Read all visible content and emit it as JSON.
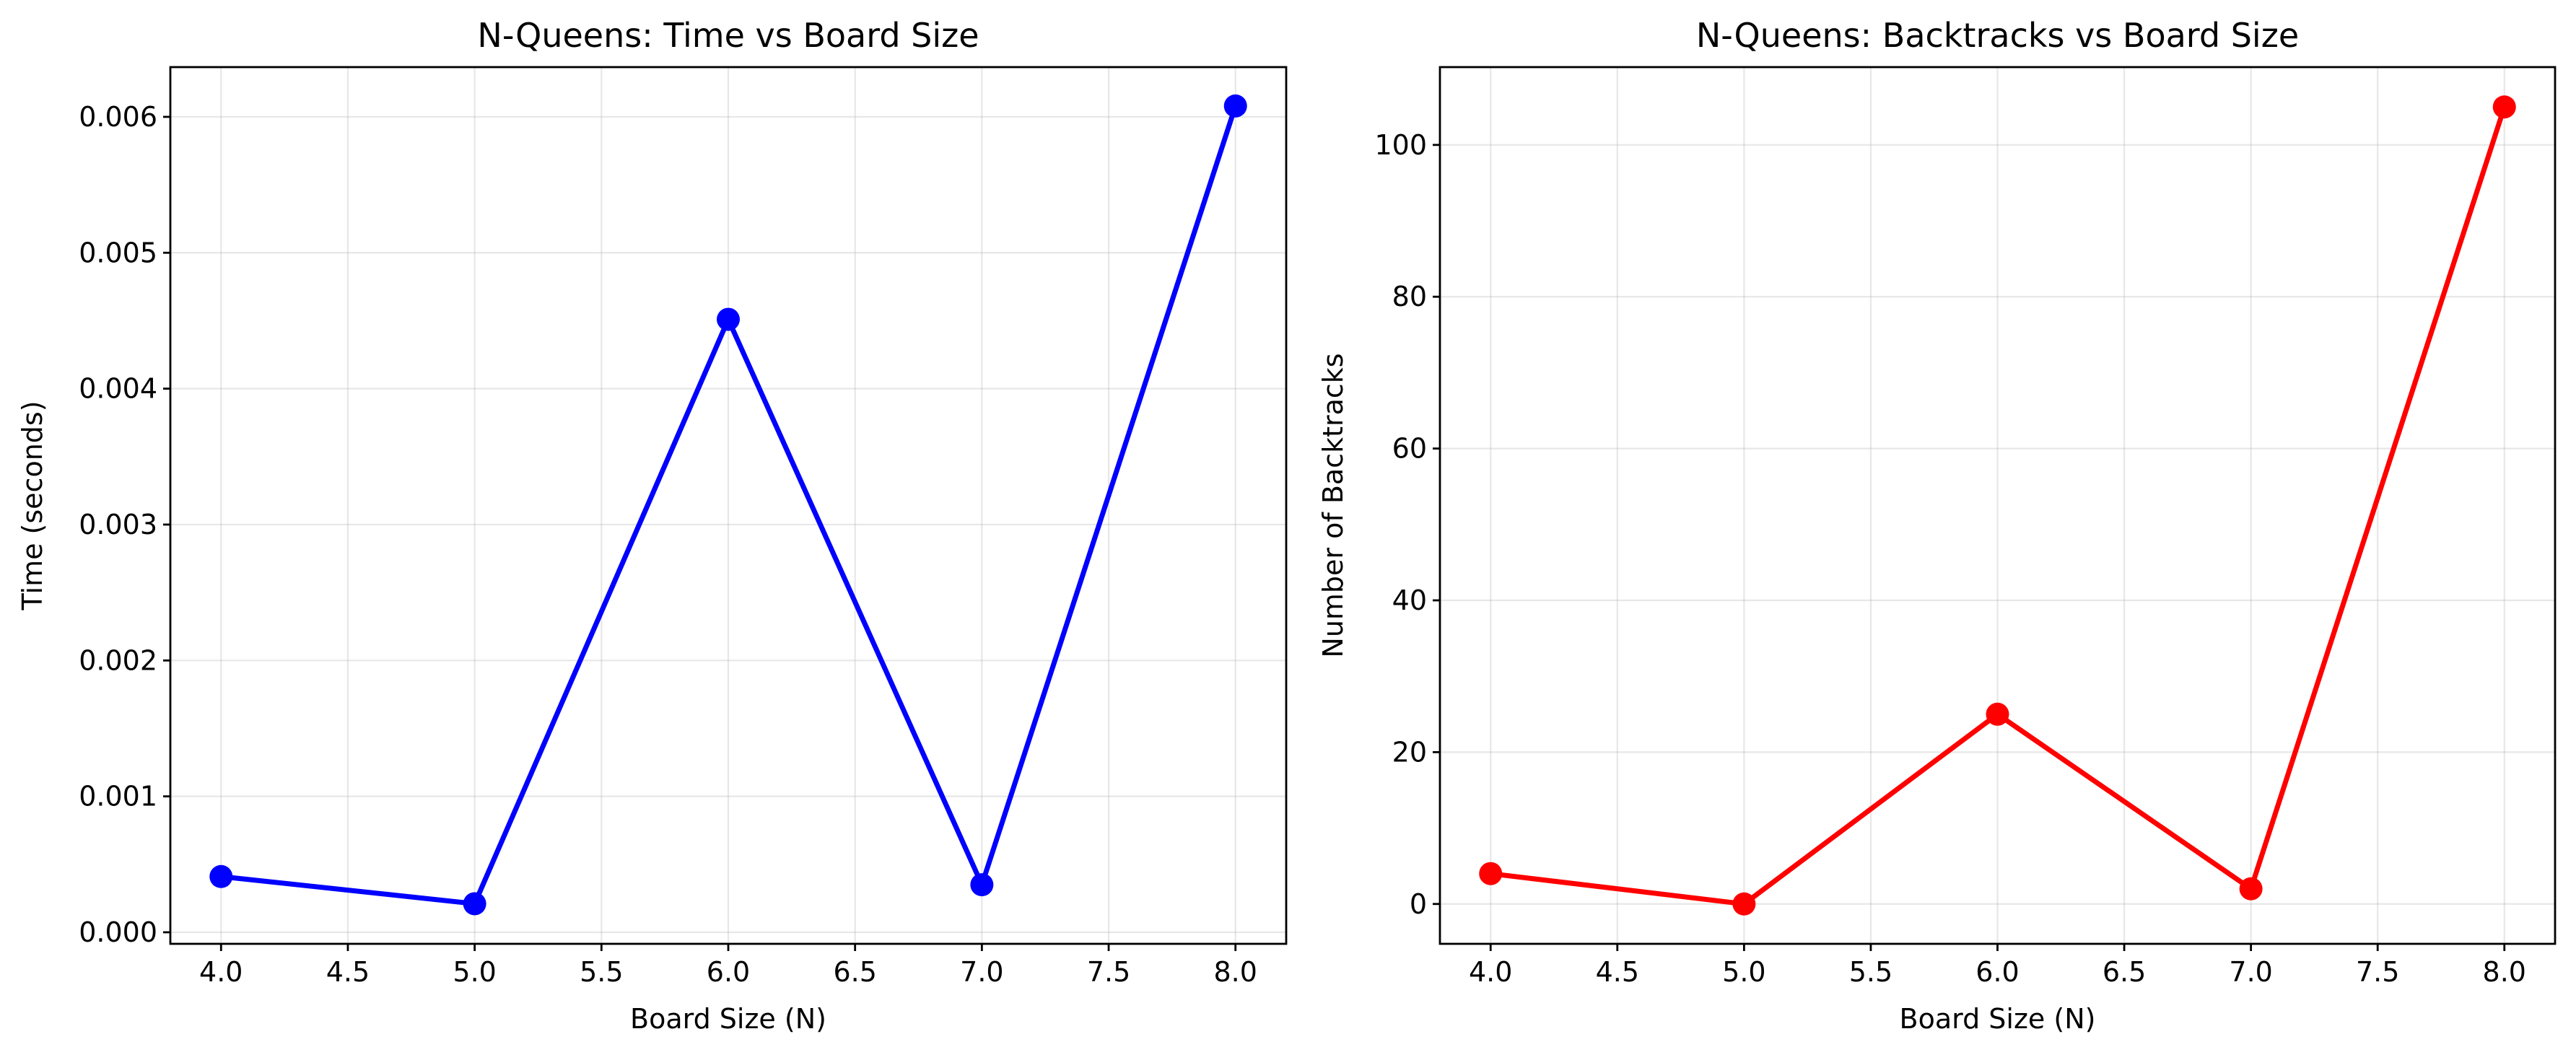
{
  "chart_data": [
    {
      "type": "line",
      "title": "N-Queens: Time vs Board Size",
      "xlabel": "Board Size (N)",
      "ylabel": "Time (seconds)",
      "x": [
        4,
        5,
        6,
        7,
        8
      ],
      "series": [
        {
          "values": [
            0.00041,
            0.00021,
            0.00451,
            0.00035,
            0.00608
          ],
          "color": "#0000ff"
        }
      ],
      "xlim": [
        3.8,
        8.2
      ],
      "ylim": [
        -8.5e-05,
        0.006366
      ],
      "xticks": [
        4.0,
        4.5,
        5.0,
        5.5,
        6.0,
        6.5,
        7.0,
        7.5,
        8.0
      ],
      "xtick_labels": [
        "4.0",
        "4.5",
        "5.0",
        "5.5",
        "6.0",
        "6.5",
        "7.0",
        "7.5",
        "8.0"
      ],
      "yticks": [
        0.0,
        0.001,
        0.002,
        0.003,
        0.004,
        0.005,
        0.006
      ],
      "ytick_labels": [
        "0.000",
        "0.001",
        "0.002",
        "0.003",
        "0.004",
        "0.005",
        "0.006"
      ],
      "grid": true,
      "marker": "circle"
    },
    {
      "type": "line",
      "title": "N-Queens: Backtracks vs Board Size",
      "xlabel": "Board Size (N)",
      "ylabel": "Number of Backtracks",
      "x": [
        4,
        5,
        6,
        7,
        8
      ],
      "series": [
        {
          "values": [
            4,
            0,
            25,
            2,
            105
          ],
          "color": "#ff0000"
        }
      ],
      "xlim": [
        3.8,
        8.2
      ],
      "ylim": [
        -5.25,
        110.25
      ],
      "xticks": [
        4.0,
        4.5,
        5.0,
        5.5,
        6.0,
        6.5,
        7.0,
        7.5,
        8.0
      ],
      "xtick_labels": [
        "4.0",
        "4.5",
        "5.0",
        "5.5",
        "6.0",
        "6.5",
        "7.0",
        "7.5",
        "8.0"
      ],
      "yticks": [
        0,
        20,
        40,
        60,
        80,
        100
      ],
      "ytick_labels": [
        "0",
        "20",
        "40",
        "60",
        "80",
        "100"
      ],
      "grid": true,
      "marker": "circle"
    }
  ]
}
